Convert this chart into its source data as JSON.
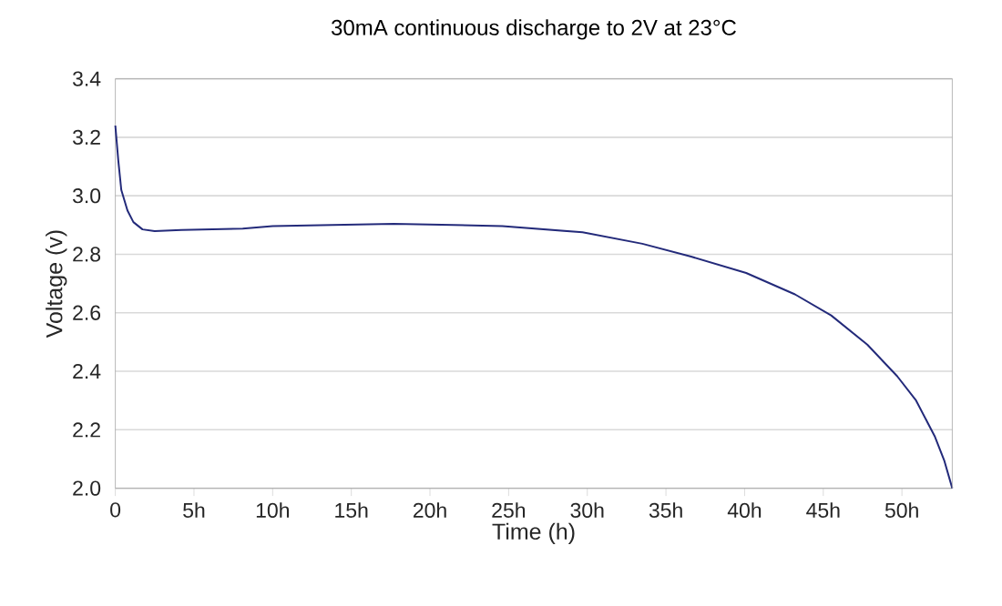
{
  "chart_data": {
    "type": "line",
    "title": "30mA continuous discharge to 2V at 23°C",
    "xlabel": "Time (h)",
    "ylabel": "Voltage (v)",
    "x": [
      0,
      0.19,
      0.38,
      0.77,
      1.15,
      1.73,
      2.5,
      4.2,
      8.1,
      10,
      13.8,
      17.7,
      21.5,
      24.6,
      29.7,
      33.5,
      36.6,
      40.1,
      43.2,
      45.5,
      47.8,
      49.7,
      50.9,
      52.1,
      52.7,
      53.2
    ],
    "series": [
      {
        "color": "#232a7a",
        "values": [
          3.24,
          3.12,
          3.02,
          2.95,
          2.91,
          2.885,
          2.879,
          2.883,
          2.888,
          2.896,
          2.9,
          2.904,
          2.9,
          2.896,
          2.875,
          2.836,
          2.792,
          2.736,
          2.663,
          2.591,
          2.491,
          2.383,
          2.3,
          2.176,
          2.093,
          2.0
        ]
      }
    ],
    "xlim": [
      0,
      53.2
    ],
    "ylim": [
      2.0,
      3.4
    ],
    "xticks": [
      {
        "value": 0,
        "label": "0"
      },
      {
        "value": 5,
        "label": "5h"
      },
      {
        "value": 10,
        "label": "10h"
      },
      {
        "value": 15,
        "label": "15h"
      },
      {
        "value": 20,
        "label": "20h"
      },
      {
        "value": 25,
        "label": "25h"
      },
      {
        "value": 30,
        "label": "30h"
      },
      {
        "value": 35,
        "label": "35h"
      },
      {
        "value": 40,
        "label": "40h"
      },
      {
        "value": 45,
        "label": "45h"
      },
      {
        "value": 50,
        "label": "50h"
      }
    ],
    "yticks": [
      {
        "value": 2.0,
        "label": "2.0"
      },
      {
        "value": 2.2,
        "label": "2.2"
      },
      {
        "value": 2.4,
        "label": "2.4"
      },
      {
        "value": 2.6,
        "label": "2.6"
      },
      {
        "value": 2.8,
        "label": "2.8"
      },
      {
        "value": 3.0,
        "label": "3.0"
      },
      {
        "value": 3.2,
        "label": "3.2"
      },
      {
        "value": 3.4,
        "label": "3.4"
      }
    ],
    "grid": "y",
    "line_style": "solid"
  }
}
